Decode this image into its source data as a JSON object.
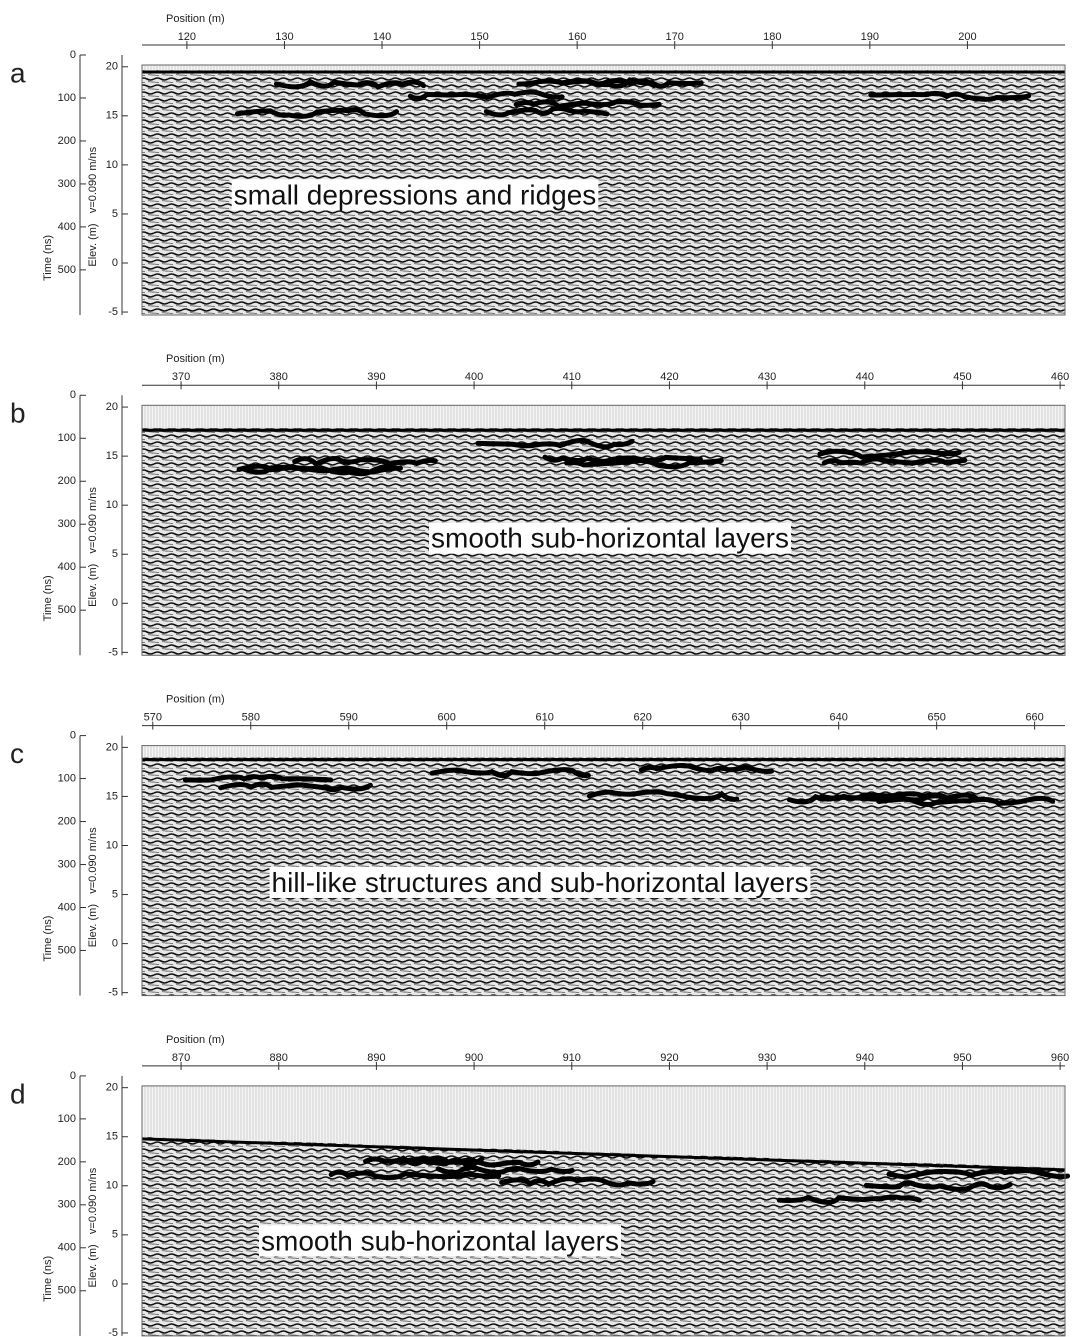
{
  "chart_data": [
    {
      "type": "radargram",
      "panel_label": "a",
      "x_label": "Position (m)",
      "y_label": "Time (ns)",
      "y2_label": "Elev. (m)",
      "velocity_label": "v=0.090 m/ns",
      "annotation": "small depressions and ridges",
      "xlim": [
        115.4,
        210
      ],
      "xticks": [
        120,
        130,
        140,
        150,
        160,
        170,
        180,
        190,
        200
      ],
      "ylim": [
        0,
        605
      ],
      "yticks": [
        0,
        100,
        200,
        300,
        400,
        500
      ],
      "y_inverted": true,
      "y2lim": [
        -5.3,
        21.2
      ],
      "y2ticks": [
        20,
        15,
        10,
        5,
        0,
        -5
      ]
    },
    {
      "type": "radargram",
      "panel_label": "b",
      "x_label": "Position (m)",
      "y_label": "Time (ns)",
      "y2_label": "Elev. (m)",
      "velocity_label": "v=0.090 m/ns",
      "annotation": "smooth sub-horizontal layers",
      "xlim": [
        366,
        460.5
      ],
      "xticks": [
        370,
        380,
        390,
        400,
        410,
        420,
        430,
        440,
        450,
        460
      ],
      "ylim": [
        0,
        605
      ],
      "yticks": [
        0,
        100,
        200,
        300,
        400,
        500
      ],
      "y_inverted": true,
      "y2lim": [
        -5.3,
        21.2
      ],
      "y2ticks": [
        20,
        15,
        10,
        5,
        0,
        -5
      ]
    },
    {
      "type": "radargram",
      "panel_label": "c",
      "x_label": "Position (m)",
      "y_label": "Time (ns)",
      "y2_label": "Elev. (m)",
      "velocity_label": "v=0.090 m/ns",
      "annotation": "hill-like structures and sub-horizontal layers",
      "xlim": [
        568.9,
        663.1
      ],
      "xticks": [
        570,
        580,
        590,
        600,
        610,
        620,
        630,
        640,
        650,
        660
      ],
      "ylim": [
        0,
        605
      ],
      "yticks": [
        0,
        100,
        200,
        300,
        400,
        500
      ],
      "y_inverted": true,
      "y2lim": [
        -5.3,
        21.2
      ],
      "y2ticks": [
        20,
        15,
        10,
        5,
        0,
        -5
      ]
    },
    {
      "type": "radargram",
      "panel_label": "d",
      "x_label": "Position (m)",
      "y_label": "Time (ns)",
      "y2_label": "Elev. (m)",
      "velocity_label": "v=0.090 m/ns",
      "annotation": "smooth sub-horizontal layers",
      "xlim": [
        866,
        960.5
      ],
      "xticks": [
        870,
        880,
        890,
        900,
        910,
        920,
        930,
        940,
        950,
        960
      ],
      "ylim": [
        0,
        605
      ],
      "yticks": [
        0,
        100,
        200,
        300,
        400,
        500
      ],
      "y_inverted": true,
      "y2lim": [
        -5.3,
        21.2
      ],
      "y2ticks": [
        20,
        15,
        10,
        5,
        0,
        -5
      ]
    }
  ]
}
